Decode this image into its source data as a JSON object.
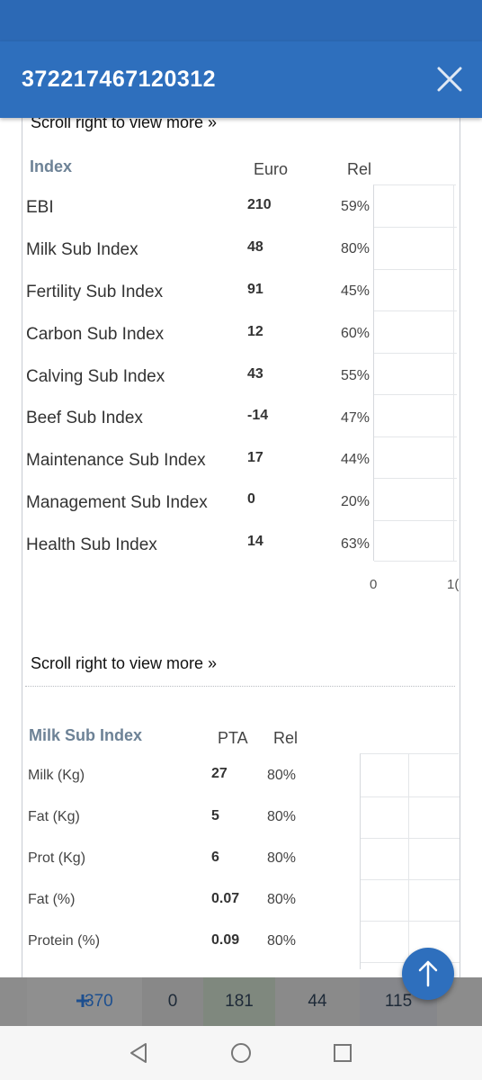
{
  "header": {
    "title": "372217467120312"
  },
  "index_section": {
    "scroll_hint": "Scroll right to view more »",
    "title": "Index",
    "col_value": "Euro",
    "col_rel": "Rel",
    "rows": [
      {
        "label": "EBI",
        "value": "210",
        "rel": "59%"
      },
      {
        "label": "Milk Sub Index",
        "value": "48",
        "rel": "80%"
      },
      {
        "label": "Fertility Sub Index",
        "value": "91",
        "rel": "45%"
      },
      {
        "label": "Carbon Sub Index",
        "value": "12",
        "rel": "60%"
      },
      {
        "label": "Calving Sub Index",
        "value": "43",
        "rel": "55%"
      },
      {
        "label": "Beef Sub Index",
        "value": "-14",
        "rel": "47%"
      },
      {
        "label": "Maintenance Sub Index",
        "value": "17",
        "rel": "44%"
      },
      {
        "label": "Management Sub Index",
        "value": "0",
        "rel": "20%"
      },
      {
        "label": "Health Sub Index",
        "value": "14",
        "rel": "63%"
      }
    ],
    "axis": [
      "0",
      "1("
    ]
  },
  "milk_section": {
    "scroll_hint": "Scroll right to view more »",
    "title": "Milk Sub Index",
    "col_value": "PTA",
    "col_rel": "Rel",
    "rows": [
      {
        "label": "Milk (Kg)",
        "value": "27",
        "rel": "80%"
      },
      {
        "label": "Fat (Kg)",
        "value": "5",
        "rel": "80%"
      },
      {
        "label": "Prot (Kg)",
        "value": "6",
        "rel": "80%"
      },
      {
        "label": "Fat (%)",
        "value": "0.07",
        "rel": "80%"
      },
      {
        "label": "Protein (%)",
        "value": "0.09",
        "rel": "80%"
      }
    ]
  },
  "bottom_bar": {
    "values": [
      "370",
      "0",
      "181",
      "44",
      "115"
    ]
  },
  "colors": {
    "primary": "#2e6fbd",
    "status": "#2c69b5",
    "section_title": "#6d8296"
  }
}
